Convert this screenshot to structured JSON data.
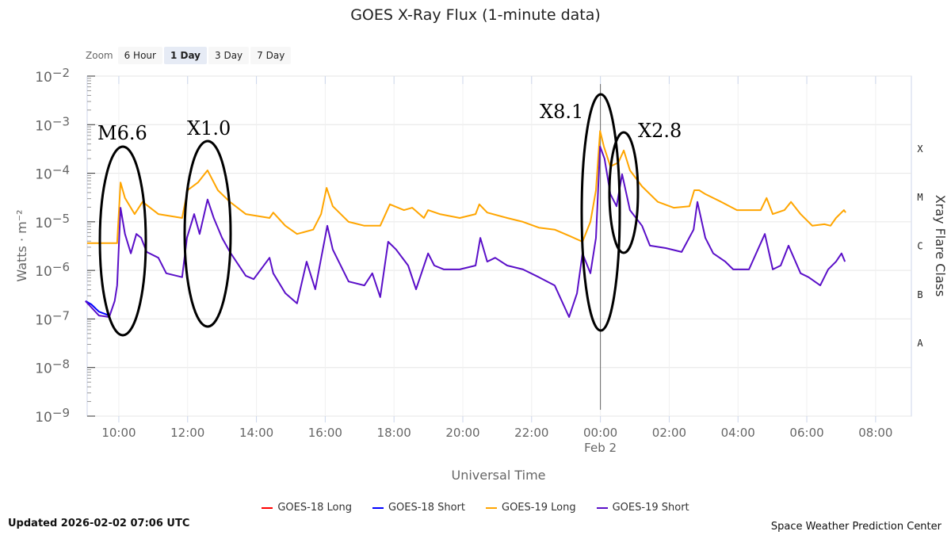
{
  "zoom": {
    "label": "Zoom",
    "buttons": [
      "6 Hour",
      "1 Day",
      "3 Day",
      "7 Day"
    ],
    "active": "1 Day"
  },
  "updated": "Updated 2026-02-02 07:06 UTC",
  "credit": "Space Weather Prediction Center",
  "chart_data": {
    "type": "line",
    "title": "GOES X-Ray Flux (1-minute data)",
    "xlabel": "Universal Time",
    "ylabel": "Watts · m⁻²",
    "ylabel_right": "Xray Flare Class",
    "yscale": "log",
    "ylim_log10": [
      -9,
      -2
    ],
    "xlim_hours": [
      9.08,
      33.04
    ],
    "x_unit": "hours since 2026-02-01 00:00 UTC",
    "x_ticks": [
      {
        "h": 10,
        "label": "10:00"
      },
      {
        "h": 12,
        "label": "12:00"
      },
      {
        "h": 14,
        "label": "14:00"
      },
      {
        "h": 16,
        "label": "16:00"
      },
      {
        "h": 18,
        "label": "18:00"
      },
      {
        "h": 20,
        "label": "20:00"
      },
      {
        "h": 22,
        "label": "22:00"
      },
      {
        "h": 24,
        "label": "00:00",
        "sub": "Feb 2"
      },
      {
        "h": 26,
        "label": "02:00"
      },
      {
        "h": 28,
        "label": "04:00"
      },
      {
        "h": 30,
        "label": "06:00"
      },
      {
        "h": 32,
        "label": "08:00"
      }
    ],
    "y_ticks": [
      {
        "exp": -2,
        "base": "10",
        "sup": "−2"
      },
      {
        "exp": -3,
        "base": "10",
        "sup": "−3"
      },
      {
        "exp": -4,
        "base": "10",
        "sup": "−4"
      },
      {
        "exp": -5,
        "base": "10",
        "sup": "−5"
      },
      {
        "exp": -6,
        "base": "10",
        "sup": "−6"
      },
      {
        "exp": -7,
        "base": "10",
        "sup": "−7"
      },
      {
        "exp": -8,
        "base": "10",
        "sup": "−8"
      },
      {
        "exp": -9,
        "base": "10",
        "sup": "−9"
      }
    ],
    "flare_classes": [
      {
        "label": "X",
        "log": -3.5
      },
      {
        "label": "M",
        "log": -4.5
      },
      {
        "label": "C",
        "log": -5.5
      },
      {
        "label": "B",
        "log": -6.5
      },
      {
        "label": "A",
        "log": -7.5
      }
    ],
    "crosshair_hour": 24.0,
    "annotations": [
      {
        "label": "M6.6",
        "hour": 10.05
      },
      {
        "label": "X1.0",
        "hour": 12.58
      },
      {
        "label": "X8.1",
        "hour": 23.99
      },
      {
        "label": "X2.8",
        "hour": 24.68
      }
    ],
    "series": [
      {
        "name": "GOES-18 Long",
        "color": "#ff0000",
        "points": []
      },
      {
        "name": "GOES-18 Short",
        "color": "#0000ff",
        "points": [
          [
            9.03,
            -6.63
          ],
          [
            9.2,
            -6.7
          ],
          [
            9.42,
            -6.85
          ],
          [
            9.72,
            -6.93
          ]
        ]
      },
      {
        "name": "GOES-19 Long",
        "color": "#ffa500",
        "points": [
          [
            9.08,
            -5.44
          ],
          [
            9.95,
            -5.44
          ],
          [
            10.05,
            -4.19
          ],
          [
            10.18,
            -4.51
          ],
          [
            10.46,
            -4.84
          ],
          [
            10.69,
            -4.59
          ],
          [
            11.15,
            -4.84
          ],
          [
            11.84,
            -4.92
          ],
          [
            12.0,
            -4.35
          ],
          [
            12.3,
            -4.19
          ],
          [
            12.58,
            -3.94
          ],
          [
            12.88,
            -4.35
          ],
          [
            13.23,
            -4.59
          ],
          [
            13.69,
            -4.84
          ],
          [
            14.38,
            -4.92
          ],
          [
            14.49,
            -4.81
          ],
          [
            14.84,
            -5.08
          ],
          [
            15.18,
            -5.25
          ],
          [
            15.65,
            -5.16
          ],
          [
            15.88,
            -4.84
          ],
          [
            16.04,
            -4.3
          ],
          [
            16.22,
            -4.68
          ],
          [
            16.68,
            -5.0
          ],
          [
            17.14,
            -5.08
          ],
          [
            17.6,
            -5.08
          ],
          [
            17.88,
            -4.64
          ],
          [
            18.29,
            -4.76
          ],
          [
            18.53,
            -4.71
          ],
          [
            18.87,
            -4.92
          ],
          [
            18.99,
            -4.76
          ],
          [
            19.33,
            -4.84
          ],
          [
            19.91,
            -4.92
          ],
          [
            20.37,
            -4.84
          ],
          [
            20.48,
            -4.64
          ],
          [
            20.71,
            -4.81
          ],
          [
            21.29,
            -4.92
          ],
          [
            21.75,
            -5.0
          ],
          [
            22.21,
            -5.12
          ],
          [
            22.67,
            -5.16
          ],
          [
            23.13,
            -5.3
          ],
          [
            23.48,
            -5.41
          ],
          [
            23.71,
            -5.0
          ],
          [
            23.87,
            -4.35
          ],
          [
            23.99,
            -3.13
          ],
          [
            24.1,
            -3.45
          ],
          [
            24.29,
            -3.86
          ],
          [
            24.52,
            -3.78
          ],
          [
            24.68,
            -3.53
          ],
          [
            24.86,
            -3.94
          ],
          [
            25.21,
            -4.27
          ],
          [
            25.67,
            -4.59
          ],
          [
            26.13,
            -4.71
          ],
          [
            26.59,
            -4.68
          ],
          [
            26.73,
            -4.35
          ],
          [
            26.87,
            -4.35
          ],
          [
            27.05,
            -4.43
          ],
          [
            27.51,
            -4.59
          ],
          [
            27.97,
            -4.76
          ],
          [
            28.66,
            -4.76
          ],
          [
            28.83,
            -4.51
          ],
          [
            29.01,
            -4.84
          ],
          [
            29.35,
            -4.76
          ],
          [
            29.54,
            -4.59
          ],
          [
            29.82,
            -4.84
          ],
          [
            30.16,
            -5.08
          ],
          [
            30.51,
            -5.05
          ],
          [
            30.69,
            -5.08
          ],
          [
            30.85,
            -4.92
          ],
          [
            31.08,
            -4.76
          ],
          [
            31.13,
            -4.81
          ]
        ]
      },
      {
        "name": "GOES-19 Short",
        "color": "#5a0fc8",
        "points": [
          [
            9.03,
            -6.63
          ],
          [
            9.42,
            -6.93
          ],
          [
            9.72,
            -6.96
          ],
          [
            9.88,
            -6.63
          ],
          [
            9.95,
            -6.31
          ],
          [
            10.05,
            -4.71
          ],
          [
            10.18,
            -5.25
          ],
          [
            10.35,
            -5.65
          ],
          [
            10.51,
            -5.25
          ],
          [
            10.65,
            -5.33
          ],
          [
            10.81,
            -5.62
          ],
          [
            11.15,
            -5.74
          ],
          [
            11.38,
            -6.06
          ],
          [
            11.84,
            -6.14
          ],
          [
            11.98,
            -5.33
          ],
          [
            12.19,
            -4.84
          ],
          [
            12.35,
            -5.25
          ],
          [
            12.58,
            -4.54
          ],
          [
            12.76,
            -4.92
          ],
          [
            13.0,
            -5.33
          ],
          [
            13.23,
            -5.62
          ],
          [
            13.69,
            -6.11
          ],
          [
            13.92,
            -6.18
          ],
          [
            14.38,
            -5.74
          ],
          [
            14.49,
            -6.06
          ],
          [
            14.84,
            -6.47
          ],
          [
            15.18,
            -6.68
          ],
          [
            15.46,
            -5.82
          ],
          [
            15.71,
            -6.39
          ],
          [
            16.06,
            -5.08
          ],
          [
            16.22,
            -5.57
          ],
          [
            16.68,
            -6.23
          ],
          [
            17.14,
            -6.31
          ],
          [
            17.37,
            -6.06
          ],
          [
            17.6,
            -6.55
          ],
          [
            17.83,
            -5.41
          ],
          [
            18.06,
            -5.57
          ],
          [
            18.41,
            -5.9
          ],
          [
            18.64,
            -6.39
          ],
          [
            18.99,
            -5.65
          ],
          [
            19.17,
            -5.9
          ],
          [
            19.45,
            -5.98
          ],
          [
            19.91,
            -5.98
          ],
          [
            20.37,
            -5.9
          ],
          [
            20.51,
            -5.33
          ],
          [
            20.71,
            -5.82
          ],
          [
            20.94,
            -5.74
          ],
          [
            21.29,
            -5.9
          ],
          [
            21.75,
            -5.98
          ],
          [
            22.21,
            -6.14
          ],
          [
            22.67,
            -6.31
          ],
          [
            23.09,
            -6.96
          ],
          [
            23.32,
            -6.47
          ],
          [
            23.48,
            -5.65
          ],
          [
            23.71,
            -6.06
          ],
          [
            23.87,
            -5.33
          ],
          [
            23.99,
            -3.45
          ],
          [
            24.12,
            -3.7
          ],
          [
            24.29,
            -4.43
          ],
          [
            24.47,
            -4.68
          ],
          [
            24.63,
            -4.02
          ],
          [
            24.86,
            -4.76
          ],
          [
            25.21,
            -5.08
          ],
          [
            25.44,
            -5.49
          ],
          [
            25.9,
            -5.54
          ],
          [
            26.36,
            -5.62
          ],
          [
            26.71,
            -5.16
          ],
          [
            26.82,
            -4.59
          ],
          [
            27.05,
            -5.33
          ],
          [
            27.28,
            -5.65
          ],
          [
            27.63,
            -5.82
          ],
          [
            27.86,
            -5.98
          ],
          [
            28.32,
            -5.98
          ],
          [
            28.78,
            -5.25
          ],
          [
            29.01,
            -5.98
          ],
          [
            29.24,
            -5.9
          ],
          [
            29.47,
            -5.49
          ],
          [
            29.82,
            -6.06
          ],
          [
            30.05,
            -6.14
          ],
          [
            30.39,
            -6.31
          ],
          [
            30.62,
            -5.98
          ],
          [
            30.85,
            -5.82
          ],
          [
            31.01,
            -5.65
          ],
          [
            31.11,
            -5.82
          ]
        ]
      }
    ]
  }
}
